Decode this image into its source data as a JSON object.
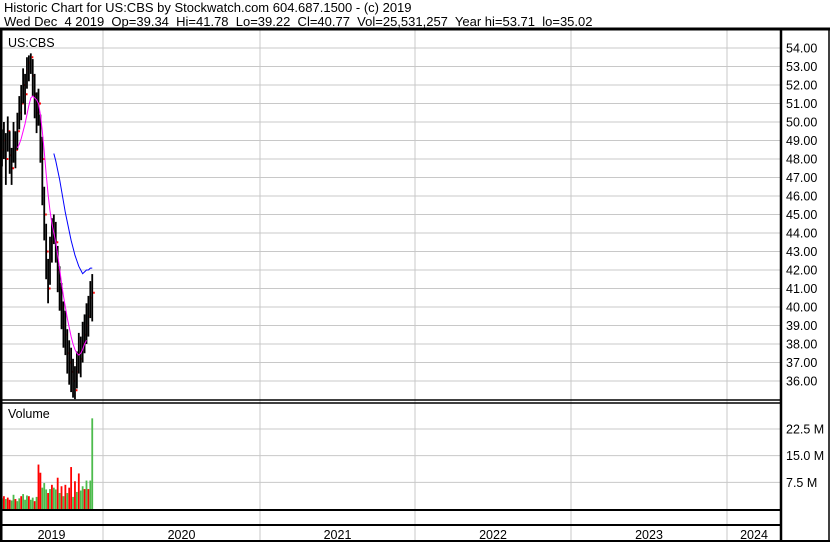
{
  "header": {
    "title": "Historic Chart for US:CBS by Stockwatch.com 604.687.1500 - (c) 2019",
    "quote": "Wed Dec  4 2019  Op=39.34  Hi=41.78  Lo=39.22  Cl=40.77  Vol=25,531,257  Year hi=53.71  lo=35.02"
  },
  "chart_data": {
    "type": "line",
    "symbol_label": "US:CBS",
    "volume_label": "Volume",
    "price_ylim": [
      35,
      54.5
    ],
    "price_ticks": [
      "54.00",
      "53.00",
      "52.00",
      "51.00",
      "50.00",
      "49.00",
      "48.00",
      "47.00",
      "46.00",
      "45.00",
      "44.00",
      "43.00",
      "42.00",
      "41.00",
      "40.00",
      "39.00",
      "38.00",
      "37.00",
      "36.00"
    ],
    "volume_ticks": [
      {
        "label": "22.5 M",
        "value": 22.5
      },
      {
        "label": "15.0 M",
        "value": 15
      },
      {
        "label": "7.5 M",
        "value": 7.5
      }
    ],
    "x_ticks": [
      "2019",
      "2020",
      "2021",
      "2022",
      "2023",
      "2024"
    ],
    "grid": true,
    "colors": {
      "bars": "#000000",
      "ma_short": "#ff00ff",
      "ma_long": "#0000ff",
      "vol_up": "#4cbb4c",
      "vol_down": "#ff0000",
      "close_tick": "#ff0000"
    },
    "weekly_close": [
      48.5,
      49,
      48,
      49.5,
      48.2,
      47.5,
      49,
      48.5,
      49.5,
      50.5,
      51,
      52,
      51.5,
      52.8,
      53.2,
      53.5,
      52.5,
      51.5,
      50.5,
      51,
      49,
      48,
      45,
      43,
      41,
      42.5,
      43.5,
      44.5,
      43.5,
      42,
      41,
      40,
      39,
      38.5,
      37.5,
      37,
      36.5,
      36,
      35.5,
      36.5,
      37.5,
      37.2,
      38,
      38.5,
      39,
      39.5,
      40.5,
      40.77
    ],
    "weekly_high": [
      49.6,
      50,
      49.4,
      50.3,
      49.5,
      48.6,
      50,
      49.5,
      50.5,
      51.4,
      52,
      52.9,
      52.6,
      53.5,
      53.6,
      53.71,
      53.4,
      52.6,
      51.6,
      51.8,
      50.4,
      49.2,
      46.5,
      44.5,
      42.6,
      43.8,
      44.8,
      45,
      44.6,
      43.3,
      42.2,
      41.3,
      40.3,
      39.8,
      38.8,
      38.2,
      37.8,
      37.2,
      36.8,
      37.6,
      38.6,
      38.4,
      39.2,
      39.6,
      40.2,
      40.6,
      41.4,
      41.78
    ],
    "weekly_low": [
      47.6,
      48,
      46.6,
      48.4,
      47.2,
      46.6,
      47.8,
      47.5,
      48.5,
      49.6,
      50.1,
      51,
      50.4,
      51.8,
      52.2,
      52.6,
      51.4,
      50.2,
      49.4,
      49.8,
      47.8,
      45.5,
      43.6,
      41.5,
      40.2,
      41.2,
      42.4,
      43.4,
      42.4,
      40.8,
      39.8,
      38.8,
      37.8,
      37.4,
      36.4,
      35.8,
      35.4,
      35.1,
      35.02,
      35.6,
      36.4,
      36.2,
      37,
      37.5,
      38,
      38.4,
      39.4,
      39.22
    ],
    "ma_short_start_week": 9,
    "ma_short": [
      48.6,
      48.8,
      49.1,
      49.5,
      49.9,
      50.4,
      50.9,
      51.3,
      51.4,
      51.3,
      51.2,
      51,
      50.4,
      49.5,
      48.4,
      47.2,
      46.1,
      45.2,
      44.5,
      44,
      43.5,
      42.8,
      42.1,
      41.3,
      40.6,
      40,
      39.4,
      38.9,
      38.4,
      38,
      37.7,
      37.5,
      37.4,
      37.5,
      37.7,
      38,
      38.2
    ],
    "ma_long_start_week": 28,
    "ma_long": [
      48.3,
      47.9,
      47.4,
      46.9,
      46.3,
      45.7,
      45.1,
      44.6,
      44.1,
      43.6,
      43.2,
      42.8,
      42.5,
      42.2,
      42,
      41.8,
      41.9,
      42.0,
      42.0,
      42.1,
      42.1
    ],
    "volume_m": [
      3,
      3.6,
      2.8,
      3.2,
      2.6,
      2.4,
      4,
      2.8,
      2.2,
      3,
      3.6,
      4.2,
      2.6,
      3.8,
      3.6,
      2.6,
      3.2,
      2.2,
      3.4,
      12.5,
      10.2,
      6,
      7.3,
      5.5,
      4.5,
      5.6,
      6.8,
      6,
      5.5,
      8.8,
      4.5,
      6.4,
      3.6,
      6.8,
      4.5,
      6,
      11.8,
      3.4,
      7.8,
      4.8,
      10,
      5.2,
      6.4,
      5.6,
      8,
      5.6,
      8,
      25.5
    ],
    "volume_up": [
      1,
      0,
      1,
      0,
      0,
      1,
      1,
      0,
      1,
      1,
      0,
      1,
      1,
      1,
      0,
      1,
      1,
      0,
      1,
      0,
      0,
      1,
      1,
      1,
      0,
      1,
      0,
      1,
      1,
      0,
      1,
      0,
      1,
      0,
      1,
      0,
      0,
      1,
      0,
      1,
      0,
      1,
      1,
      0,
      1,
      0,
      1,
      1
    ]
  }
}
